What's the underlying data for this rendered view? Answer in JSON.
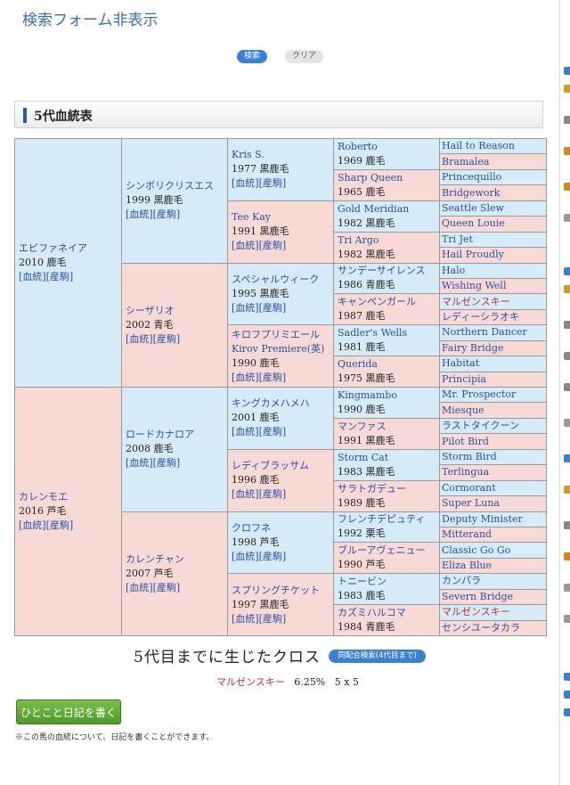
{
  "header": {
    "toggle_label": "検索フォーム非表示"
  },
  "buttons": {
    "search": "検索",
    "clear": "クリア",
    "cross_search": "同配合検索(4代目まで)",
    "diary": "ひとこと日記を書く"
  },
  "section": {
    "title": "5代血統表"
  },
  "link_labels": {
    "bloodline": "[血統]",
    "produce": "[産駒]"
  },
  "pedigree": {
    "sire": {
      "name": "エピファネイア",
      "info": "2010 鹿毛"
    },
    "dam": {
      "name": "カレンモエ",
      "info": "2016 芦毛"
    },
    "gen2": [
      {
        "name": "シンボリクリスエス",
        "info": "1999 黒鹿毛"
      },
      {
        "name": "シーザリオ",
        "info": "2002 青毛"
      },
      {
        "name": "ロードカナロア",
        "info": "2008 鹿毛"
      },
      {
        "name": "カレンチャン",
        "info": "2007 芦毛"
      }
    ],
    "gen3": [
      {
        "name": "Kris S.",
        "info": "1977 黒鹿毛"
      },
      {
        "name": "Tee Kay",
        "info": "1991 黒鹿毛"
      },
      {
        "name": "スペシャルウィーク",
        "info": "1995 黒鹿毛"
      },
      {
        "name": "キロフプリミエール",
        "name2": "Kirov Premiere(英)",
        "info": "1990 鹿毛"
      },
      {
        "name": "キングカメハメハ",
        "info": "2001 鹿毛"
      },
      {
        "name": "レディブラッサム",
        "info": "1996 鹿毛"
      },
      {
        "name": "クロフネ",
        "info": "1998 芦毛"
      },
      {
        "name": "スプリングチケット",
        "info": "1997 黒鹿毛"
      }
    ],
    "gen4": [
      {
        "name": "Roberto",
        "info": "1969 鹿毛"
      },
      {
        "name": "Sharp Queen",
        "info": "1965 鹿毛"
      },
      {
        "name": "Gold Meridian",
        "info": "1982 黒鹿毛"
      },
      {
        "name": "Tri Argo",
        "info": "1982 黒鹿毛"
      },
      {
        "name": "サンデーサイレンス",
        "info": "1986 青鹿毛"
      },
      {
        "name": "キャンペンガール",
        "info": "1987 鹿毛"
      },
      {
        "name": "Sadler's Wells",
        "info": "1981 鹿毛"
      },
      {
        "name": "Querida",
        "info": "1975 黒鹿毛"
      },
      {
        "name": "Kingmambo",
        "info": "1990 鹿毛"
      },
      {
        "name": "マンファス",
        "info": "1991 黒鹿毛"
      },
      {
        "name": "Storm Cat",
        "info": "1983 黒鹿毛"
      },
      {
        "name": "サラトガデュー",
        "info": "1989 鹿毛"
      },
      {
        "name": "フレンチデピュティ",
        "info": "1992 栗毛"
      },
      {
        "name": "ブルーアヴェニュー",
        "info": "1990 芦毛"
      },
      {
        "name": "トニービン",
        "info": "1983 鹿毛"
      },
      {
        "name": "カズミハルコマ",
        "info": "1984 青鹿毛"
      }
    ],
    "gen5": [
      "Hail to Reason",
      "Bramalea",
      "Princequillo",
      "Bridgework",
      "Seattle Slew",
      "Queen Louie",
      "Tri Jet",
      "Hail Proudly",
      "Halo",
      "Wishing Well",
      "マルゼンスキー",
      "レディーシラオキ",
      "Northern Dancer",
      "Fairy Bridge",
      "Habitat",
      "Principia",
      "Mr. Prospector",
      "Miesque",
      "ラストタイクーン",
      "Pilot Bird",
      "Storm Bird",
      "Terlingua",
      "Cormorant",
      "Super Luna",
      "Deputy Minister",
      "Mitterand",
      "Classic Go Go",
      "Eliza Blue",
      "カンパラ",
      "Severn Bridge",
      "マルゼンスキー",
      "センシユータカラ"
    ]
  },
  "cross": {
    "title": "5代目までに生じたクロス",
    "horse": "マルゼンスキー",
    "percent": "6.25%",
    "pattern": "5 x 5"
  },
  "note": "※この馬の血統について、日記を書くことができます。",
  "colors": {
    "male_bg": "#d5ebf8",
    "female_bg": "#f7dad6",
    "link": "#2a4fa3",
    "cross_red": "#c23030",
    "accent_blue": "#3a7fd8"
  }
}
